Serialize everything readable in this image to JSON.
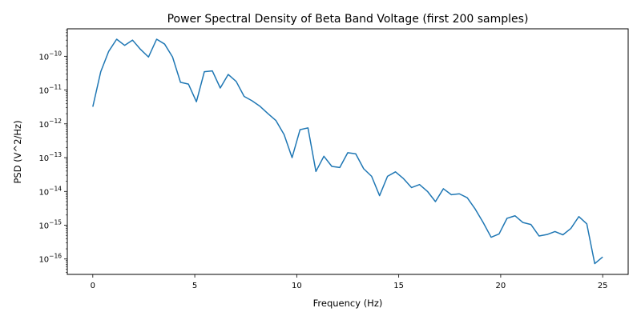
{
  "chart_data": {
    "type": "line",
    "title": "Power Spectral Density of Beta Band Voltage (first 200 samples)",
    "xlabel": "Frequency (Hz)",
    "ylabel": "PSD (V^2/Hz)",
    "xlim": [
      -1.25,
      26.25
    ],
    "ylim": [
      3.5e-17,
      6.5e-10
    ],
    "yscale": "log",
    "grid": false,
    "line_color": "#1f77b4",
    "x_ticks": [
      0,
      5,
      10,
      15,
      20,
      25
    ],
    "x_tick_labels": [
      "0",
      "5",
      "10",
      "15",
      "20",
      "25"
    ],
    "y_ticks": [
      1e-16,
      1e-15,
      1e-14,
      1e-13,
      1e-12,
      1e-11,
      1e-10
    ],
    "y_tick_labels": [
      {
        "base": "10",
        "exp": "−16"
      },
      {
        "base": "10",
        "exp": "−15"
      },
      {
        "base": "10",
        "exp": "−14"
      },
      {
        "base": "10",
        "exp": "−13"
      },
      {
        "base": "10",
        "exp": "−12"
      },
      {
        "base": "10",
        "exp": "−11"
      },
      {
        "base": "10",
        "exp": "−10"
      }
    ],
    "series": [
      {
        "x": [
          0,
          0.39,
          0.78,
          1.17,
          1.56,
          1.95,
          2.34,
          2.73,
          3.13,
          3.52,
          3.91,
          4.3,
          4.69,
          5.08,
          5.47,
          5.86,
          6.25,
          6.64,
          7.03,
          7.42,
          7.81,
          8.2,
          8.59,
          8.98,
          9.38,
          9.77,
          10.16,
          10.55,
          10.94,
          11.33,
          11.72,
          12.11,
          12.5,
          12.89,
          13.28,
          13.67,
          14.06,
          14.45,
          14.84,
          15.23,
          15.63,
          16.02,
          16.41,
          16.8,
          17.19,
          17.58,
          17.97,
          18.36,
          18.75,
          19.14,
          19.53,
          19.92,
          20.31,
          20.7,
          21.09,
          21.48,
          21.88,
          22.27,
          22.66,
          23.05,
          23.44,
          23.83,
          24.22,
          24.61,
          25.0
        ],
        "y": [
          3.2e-12,
          3.5e-11,
          1.4e-10,
          3.2e-10,
          2.1e-10,
          3e-10,
          1.6e-10,
          9.5e-11,
          3.2e-10,
          2.3e-10,
          9.5e-11,
          1.7e-11,
          1.5e-11,
          4.5e-12,
          3.5e-11,
          3.7e-11,
          1.15e-11,
          2.9e-11,
          1.8e-11,
          6.5e-12,
          4.8e-12,
          3.3e-12,
          2e-12,
          1.25e-12,
          4.8e-13,
          1e-13,
          6.7e-13,
          7.6e-13,
          3.9e-14,
          1.1e-13,
          5.5e-14,
          5.1e-14,
          1.4e-13,
          1.3e-13,
          4.7e-14,
          2.8e-14,
          7.5e-15,
          2.8e-14,
          3.8e-14,
          2.4e-14,
          1.3e-14,
          1.6e-14,
          1e-14,
          5e-15,
          1.2e-14,
          8e-15,
          8.5e-15,
          6.5e-15,
          3e-15,
          1.2e-15,
          4.4e-16,
          5.5e-16,
          1.6e-15,
          1.9e-15,
          1.2e-15,
          1.05e-15,
          4.8e-16,
          5.3e-16,
          6.5e-16,
          5.2e-16,
          8e-16,
          1.8e-15,
          1.1e-15,
          7.3e-17,
          1.15e-16
        ]
      }
    ]
  }
}
